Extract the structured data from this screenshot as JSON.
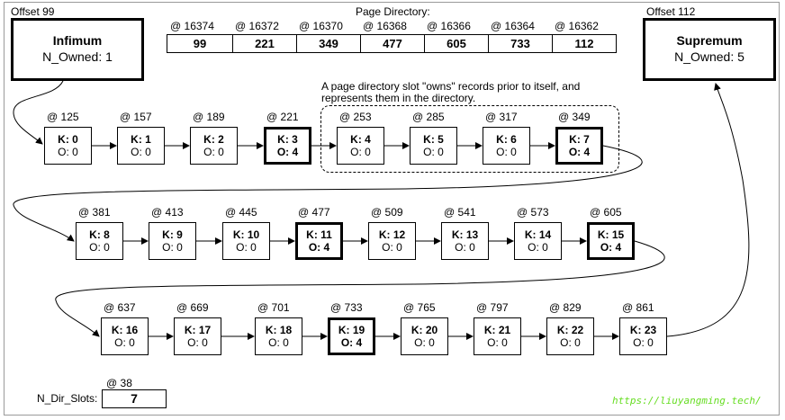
{
  "page_directory": {
    "title": "Page Directory:",
    "offsets": [
      "@ 16374",
      "@ 16372",
      "@ 16370",
      "@ 16368",
      "@ 16366",
      "@ 16364",
      "@ 16362"
    ],
    "values": [
      "99",
      "221",
      "349",
      "477",
      "605",
      "733",
      "112"
    ]
  },
  "infimum": {
    "offset": "Offset 99",
    "title": "Infimum",
    "owned": "N_Owned: 1"
  },
  "supremum": {
    "offset": "Offset 112",
    "title": "Supremum",
    "owned": "N_Owned: 5"
  },
  "annotation": {
    "line1": "A page directory slot \"owns\" records prior to itself, and",
    "line2": "represents them in the directory."
  },
  "rows": [
    [
      {
        "addr": "@ 125",
        "key": "K: 0",
        "owned": "O: 0",
        "owner": false
      },
      {
        "addr": "@ 157",
        "key": "K: 1",
        "owned": "O: 0",
        "owner": false
      },
      {
        "addr": "@ 189",
        "key": "K: 2",
        "owned": "O: 0",
        "owner": false
      },
      {
        "addr": "@ 221",
        "key": "K: 3",
        "owned": "O: 4",
        "owner": true
      },
      {
        "addr": "@ 253",
        "key": "K: 4",
        "owned": "O: 0",
        "owner": false
      },
      {
        "addr": "@ 285",
        "key": "K: 5",
        "owned": "O: 0",
        "owner": false
      },
      {
        "addr": "@ 317",
        "key": "K: 6",
        "owned": "O: 0",
        "owner": false
      },
      {
        "addr": "@ 349",
        "key": "K: 7",
        "owned": "O: 4",
        "owner": true
      }
    ],
    [
      {
        "addr": "@ 381",
        "key": "K: 8",
        "owned": "O: 0",
        "owner": false
      },
      {
        "addr": "@ 413",
        "key": "K: 9",
        "owned": "O: 0",
        "owner": false
      },
      {
        "addr": "@ 445",
        "key": "K: 10",
        "owned": "O: 0",
        "owner": false
      },
      {
        "addr": "@ 477",
        "key": "K: 11",
        "owned": "O: 4",
        "owner": true
      },
      {
        "addr": "@ 509",
        "key": "K: 12",
        "owned": "O: 0",
        "owner": false
      },
      {
        "addr": "@ 541",
        "key": "K: 13",
        "owned": "O: 0",
        "owner": false
      },
      {
        "addr": "@ 573",
        "key": "K: 14",
        "owned": "O: 0",
        "owner": false
      },
      {
        "addr": "@ 605",
        "key": "K: 15",
        "owned": "O: 4",
        "owner": true
      }
    ],
    [
      {
        "addr": "@ 637",
        "key": "K: 16",
        "owned": "O: 0",
        "owner": false
      },
      {
        "addr": "@ 669",
        "key": "K: 17",
        "owned": "O: 0",
        "owner": false
      },
      {
        "addr": "@ 701",
        "key": "K: 18",
        "owned": "O: 0",
        "owner": false
      },
      {
        "addr": "@ 733",
        "key": "K: 19",
        "owned": "O: 4",
        "owner": true
      },
      {
        "addr": "@ 765",
        "key": "K: 20",
        "owned": "O: 0",
        "owner": false
      },
      {
        "addr": "@ 797",
        "key": "K: 21",
        "owned": "O: 0",
        "owner": false
      },
      {
        "addr": "@ 829",
        "key": "K: 22",
        "owned": "O: 0",
        "owner": false
      },
      {
        "addr": "@ 861",
        "key": "K: 23",
        "owned": "O: 0",
        "owner": false
      }
    ]
  ],
  "n_dir_slots": {
    "offset": "@ 38",
    "label": "N_Dir_Slots:",
    "value": "7"
  },
  "watermark": "https://liuyangming.tech/"
}
